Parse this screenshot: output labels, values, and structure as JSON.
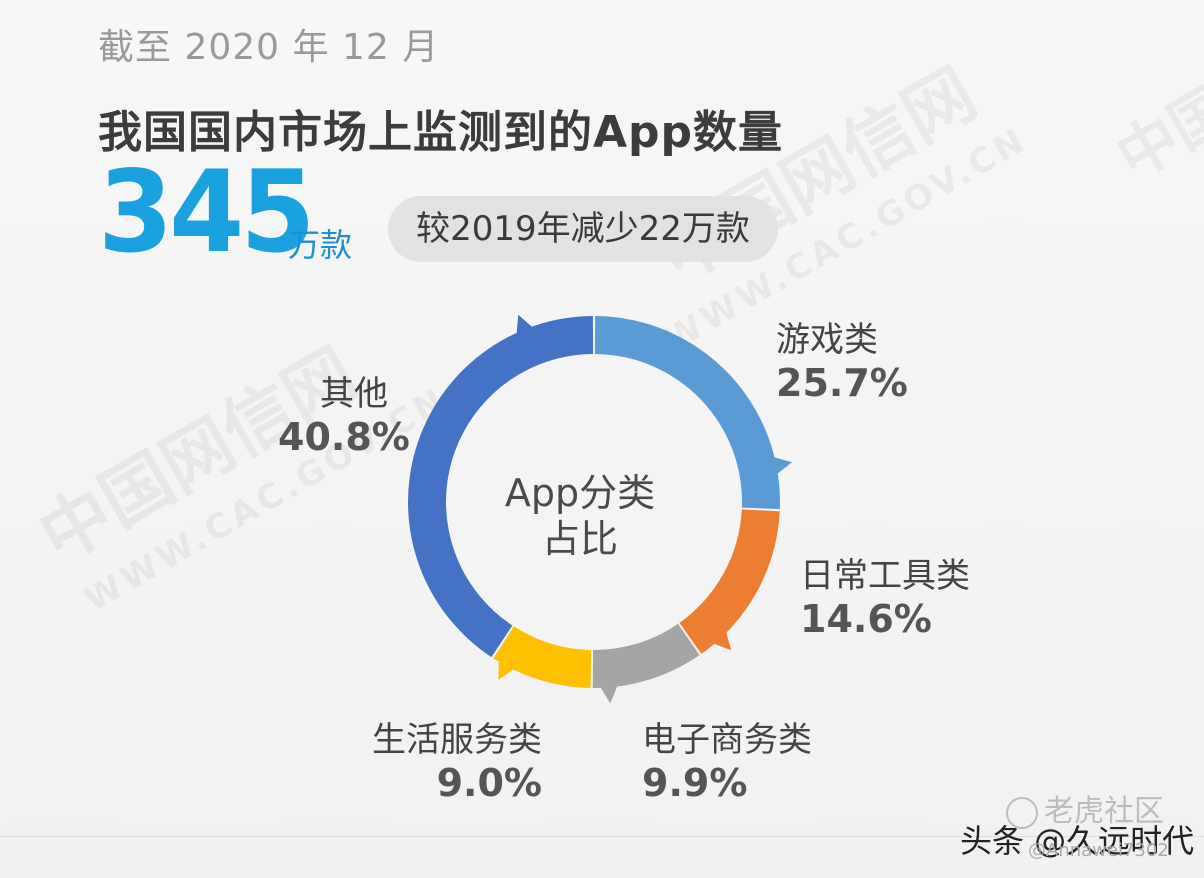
{
  "header": {
    "date_text": "截至 2020 年 12 月",
    "title": "我国国内市场上监测到的App数量",
    "big_number": "345",
    "unit": "万款",
    "comparison": "较2019年减少22万款"
  },
  "chart_data": {
    "type": "pie",
    "donut": true,
    "title": "App分类占比",
    "center_text_line1": "App分类",
    "center_text_line2": "占比",
    "slices": [
      {
        "name": "游戏类",
        "label": "25.7%",
        "value": 25.7,
        "color": "#5b9bd5"
      },
      {
        "name": "日常工具类",
        "label": "14.6%",
        "value": 14.6,
        "color": "#ed7d31"
      },
      {
        "name": "电子商务类",
        "label": "9.9%",
        "value": 9.9,
        "color": "#a5a5a5"
      },
      {
        "name": "生活服务类",
        "label": "9.0%",
        "value": 9.0,
        "color": "#ffc000"
      },
      {
        "name": "其他",
        "label": "40.8%",
        "value": 40.8,
        "color": "#4472c4"
      }
    ]
  },
  "watermark": {
    "cn": "中国网信网",
    "en": "WWW.CAC.GOV.CN"
  },
  "footer": {
    "brand": "老虎社区",
    "credit": "头条 @久远时代",
    "credit_sub": "@Annawei7302"
  }
}
